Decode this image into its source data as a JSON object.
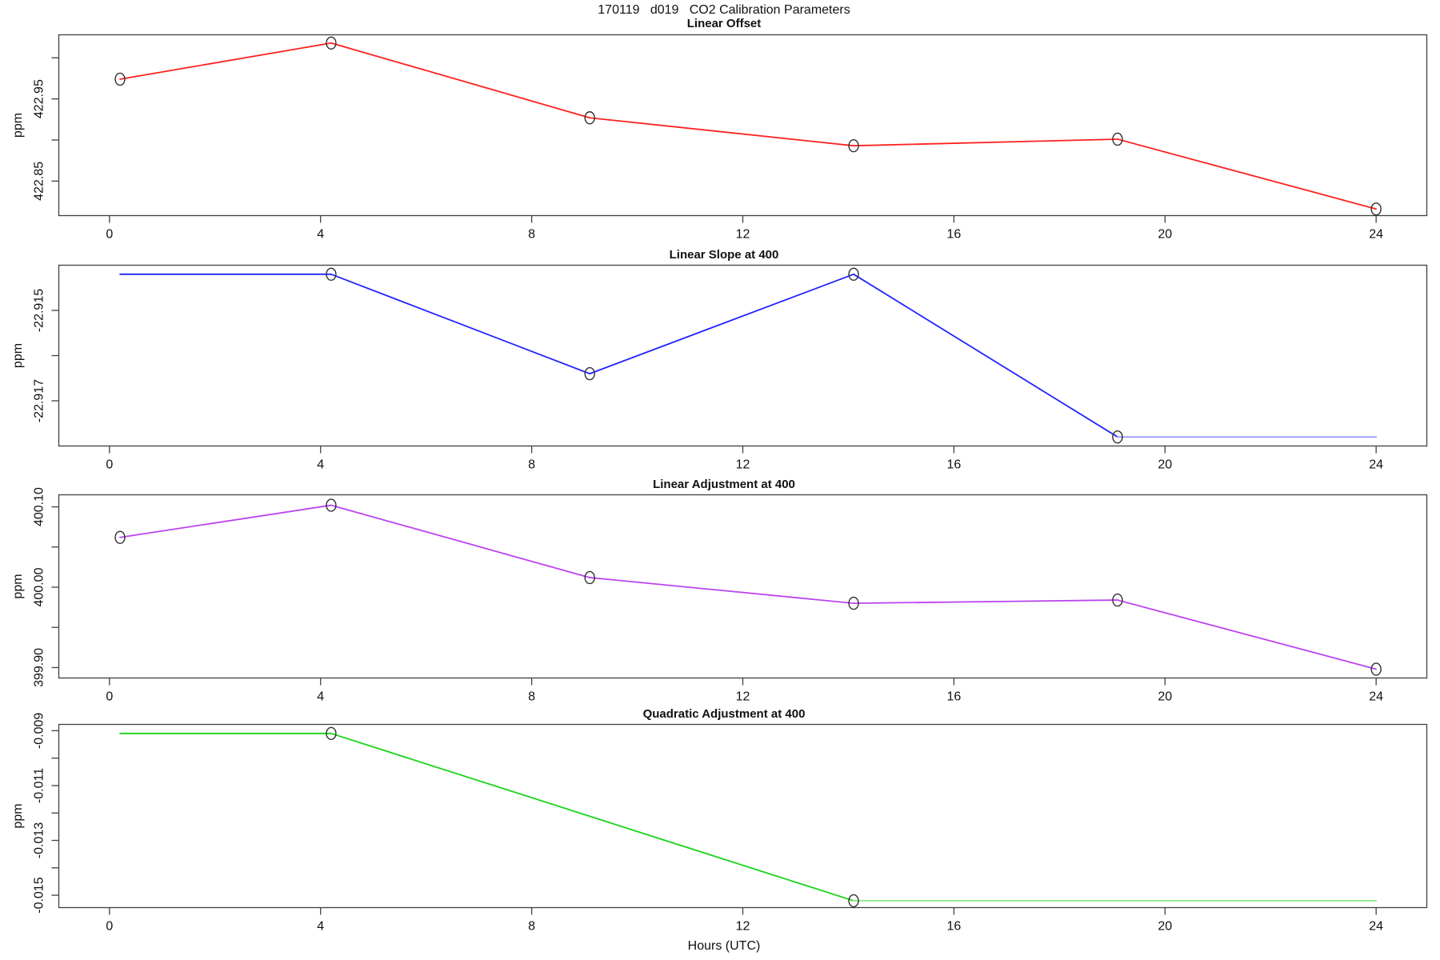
{
  "main_title": "170119   d019   CO2 Calibration Parameters",
  "x_axis_label": "Hours (UTC)",
  "chart_data": [
    {
      "type": "line",
      "title": "Linear Offset",
      "ylabel": "ppm",
      "color": "#ff2020",
      "marker_color": "#303030",
      "x": [
        0.2,
        4.2,
        9.1,
        14.1,
        19.1,
        24.0
      ],
      "values": [
        422.974,
        423.018,
        422.927,
        422.893,
        422.901,
        422.816
      ],
      "markers": [
        true,
        true,
        true,
        true,
        true,
        true
      ],
      "xlim": [
        -0.96,
        24.96
      ],
      "xticks": [
        0,
        4,
        8,
        12,
        16,
        20,
        24
      ],
      "ylim": [
        422.808,
        423.028
      ],
      "yticks": [
        {
          "v": 422.85,
          "label": "422.85"
        },
        {
          "v": 422.9,
          "label": ""
        },
        {
          "v": 422.95,
          "label": "422.95"
        },
        {
          "v": 423.0,
          "label": ""
        }
      ],
      "grid": false,
      "legend": null
    },
    {
      "type": "line",
      "title": "Linear Slope at 400",
      "ylabel": "ppm",
      "color": "#2424ff",
      "marker_color": "#303030",
      "light_tail": {
        "from_index": 4,
        "color": "#a0a0fa"
      },
      "x": [
        0.2,
        4.2,
        9.1,
        14.1,
        19.1,
        24.0
      ],
      "values": [
        -22.9142,
        -22.9142,
        -22.9164,
        -22.9142,
        -22.9178,
        -22.9178
      ],
      "markers": [
        false,
        true,
        true,
        true,
        true,
        false
      ],
      "xlim": [
        -0.96,
        24.96
      ],
      "xticks": [
        0,
        4,
        8,
        12,
        16,
        20,
        24
      ],
      "ylim": [
        -22.918,
        -22.914
      ],
      "yticks": [
        {
          "v": -22.917,
          "label": "-22.917"
        },
        {
          "v": -22.916,
          "label": ""
        },
        {
          "v": -22.915,
          "label": "-22.915"
        }
      ],
      "grid": false,
      "legend": null
    },
    {
      "type": "line",
      "title": "Linear Adjustment at 400",
      "ylabel": "ppm",
      "color": "#bb44f0",
      "marker_color": "#303030",
      "x": [
        0.2,
        4.2,
        9.1,
        14.1,
        19.1,
        24.0
      ],
      "values": [
        400.062,
        400.102,
        400.012,
        399.98,
        399.984,
        399.898
      ],
      "markers": [
        true,
        true,
        true,
        true,
        true,
        true
      ],
      "xlim": [
        -0.96,
        24.96
      ],
      "xticks": [
        0,
        4,
        8,
        12,
        16,
        20,
        24
      ],
      "ylim": [
        399.887,
        400.115
      ],
      "yticks": [
        {
          "v": 399.9,
          "label": "399.90"
        },
        {
          "v": 399.95,
          "label": ""
        },
        {
          "v": 400.0,
          "label": "400.00"
        },
        {
          "v": 400.05,
          "label": ""
        },
        {
          "v": 400.1,
          "label": "400.10"
        }
      ],
      "grid": false,
      "legend": null
    },
    {
      "type": "line",
      "title": "Quadratic Adjustment at 400",
      "ylabel": "ppm",
      "color": "#19d419",
      "marker_color": "#303030",
      "light_tail": {
        "from_index": 2,
        "color": "#90ea90"
      },
      "x": [
        0.2,
        4.2,
        14.1,
        24.0
      ],
      "values": [
        -0.0091,
        -0.0091,
        -0.0152,
        -0.0152
      ],
      "markers": [
        false,
        true,
        true,
        false
      ],
      "xlim": [
        -0.96,
        24.96
      ],
      "xticks": [
        0,
        4,
        8,
        12,
        16,
        20,
        24
      ],
      "ylim": [
        -0.01545,
        -0.00877
      ],
      "yticks": [
        {
          "v": -0.015,
          "label": "-0.015"
        },
        {
          "v": -0.014,
          "label": ""
        },
        {
          "v": -0.013,
          "label": "-0.013"
        },
        {
          "v": -0.012,
          "label": ""
        },
        {
          "v": -0.011,
          "label": "-0.011"
        },
        {
          "v": -0.01,
          "label": ""
        },
        {
          "v": -0.009,
          "label": "-0.009"
        }
      ],
      "grid": false,
      "legend": null
    }
  ]
}
